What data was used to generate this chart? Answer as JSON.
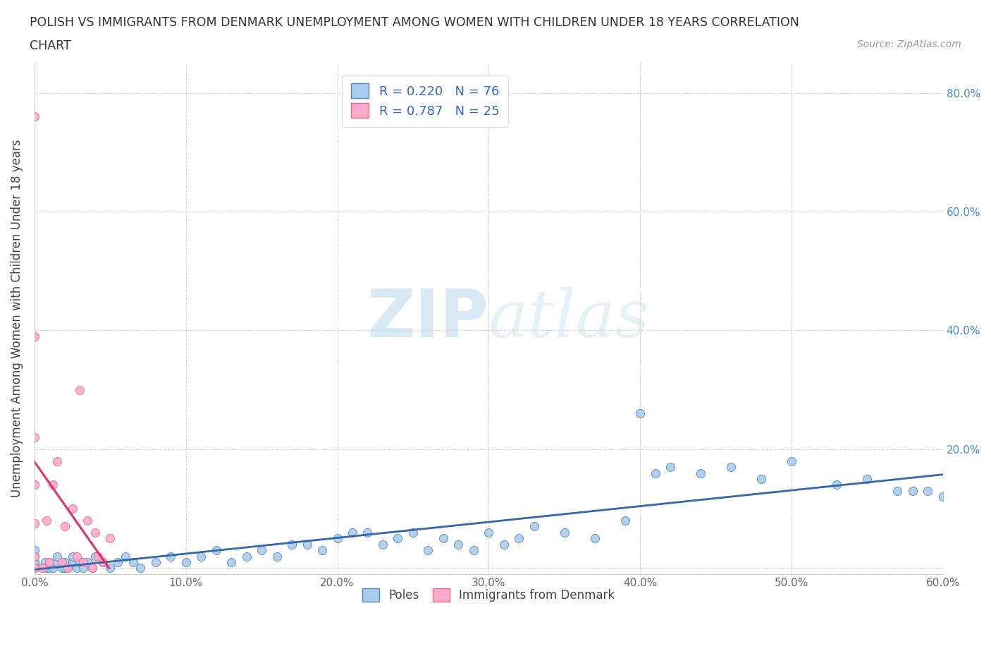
{
  "title_line1": "POLISH VS IMMIGRANTS FROM DENMARK UNEMPLOYMENT AMONG WOMEN WITH CHILDREN UNDER 18 YEARS CORRELATION",
  "title_line2": "CHART",
  "source": "Source: ZipAtlas.com",
  "ylabel": "Unemployment Among Women with Children Under 18 years",
  "xlim": [
    0.0,
    0.6
  ],
  "ylim": [
    -0.01,
    0.85
  ],
  "xticks": [
    0.0,
    0.1,
    0.2,
    0.3,
    0.4,
    0.5,
    0.6
  ],
  "xtick_labels": [
    "0.0%",
    "10.0%",
    "20.0%",
    "30.0%",
    "40.0%",
    "50.0%",
    "60.0%"
  ],
  "yticks": [
    0.0,
    0.2,
    0.4,
    0.6,
    0.8
  ],
  "ytick_labels": [
    "",
    "20.0%",
    "40.0%",
    "60.0%",
    "80.0%"
  ],
  "poles_color": "#aaccee",
  "poles_edge_color": "#5588bb",
  "denmark_color": "#ffaacc",
  "denmark_edge_color": "#ee6688",
  "poles_line_color": "#3366aa",
  "denmark_line_color": "#dd3366",
  "legend_text_color": "#3366cc",
  "R_poles": 0.22,
  "N_poles": 76,
  "R_denmark": 0.787,
  "N_denmark": 25,
  "watermark_zip": "ZIP",
  "watermark_atlas": "atlas",
  "poles_x": [
    0.0,
    0.0,
    0.0,
    0.0,
    0.0,
    0.0,
    0.0,
    0.0,
    0.005,
    0.007,
    0.008,
    0.01,
    0.01,
    0.012,
    0.015,
    0.015,
    0.018,
    0.02,
    0.02,
    0.022,
    0.025,
    0.025,
    0.028,
    0.03,
    0.032,
    0.035,
    0.038,
    0.04,
    0.045,
    0.05,
    0.055,
    0.06,
    0.065,
    0.07,
    0.08,
    0.09,
    0.1,
    0.11,
    0.12,
    0.13,
    0.14,
    0.15,
    0.16,
    0.17,
    0.18,
    0.19,
    0.2,
    0.21,
    0.22,
    0.23,
    0.24,
    0.25,
    0.26,
    0.27,
    0.28,
    0.29,
    0.3,
    0.31,
    0.32,
    0.33,
    0.35,
    0.37,
    0.39,
    0.4,
    0.41,
    0.42,
    0.44,
    0.46,
    0.48,
    0.5,
    0.53,
    0.55,
    0.57,
    0.58,
    0.59,
    0.6
  ],
  "poles_y": [
    0.0,
    0.0,
    0.0,
    0.01,
    0.01,
    0.02,
    0.02,
    0.03,
    0.0,
    0.01,
    0.0,
    0.0,
    0.01,
    0.0,
    0.01,
    0.02,
    0.0,
    0.0,
    0.01,
    0.0,
    0.01,
    0.02,
    0.0,
    0.01,
    0.0,
    0.01,
    0.0,
    0.02,
    0.01,
    0.0,
    0.01,
    0.02,
    0.01,
    0.0,
    0.01,
    0.02,
    0.01,
    0.02,
    0.03,
    0.01,
    0.02,
    0.03,
    0.02,
    0.04,
    0.04,
    0.03,
    0.05,
    0.06,
    0.06,
    0.04,
    0.05,
    0.06,
    0.03,
    0.05,
    0.04,
    0.03,
    0.06,
    0.04,
    0.05,
    0.07,
    0.06,
    0.05,
    0.08,
    0.26,
    0.16,
    0.17,
    0.16,
    0.17,
    0.15,
    0.18,
    0.14,
    0.15,
    0.13,
    0.13,
    0.13,
    0.12
  ],
  "denmark_x": [
    0.0,
    0.0,
    0.0,
    0.0,
    0.0,
    0.0,
    0.0,
    0.005,
    0.008,
    0.01,
    0.012,
    0.015,
    0.018,
    0.02,
    0.022,
    0.025,
    0.028,
    0.03,
    0.032,
    0.035,
    0.038,
    0.04,
    0.042,
    0.045,
    0.05
  ],
  "denmark_y": [
    0.0,
    0.02,
    0.075,
    0.14,
    0.22,
    0.39,
    0.76,
    0.0,
    0.08,
    0.01,
    0.14,
    0.18,
    0.01,
    0.07,
    0.0,
    0.1,
    0.02,
    0.3,
    0.01,
    0.08,
    0.0,
    0.06,
    0.02,
    0.01,
    0.05
  ]
}
